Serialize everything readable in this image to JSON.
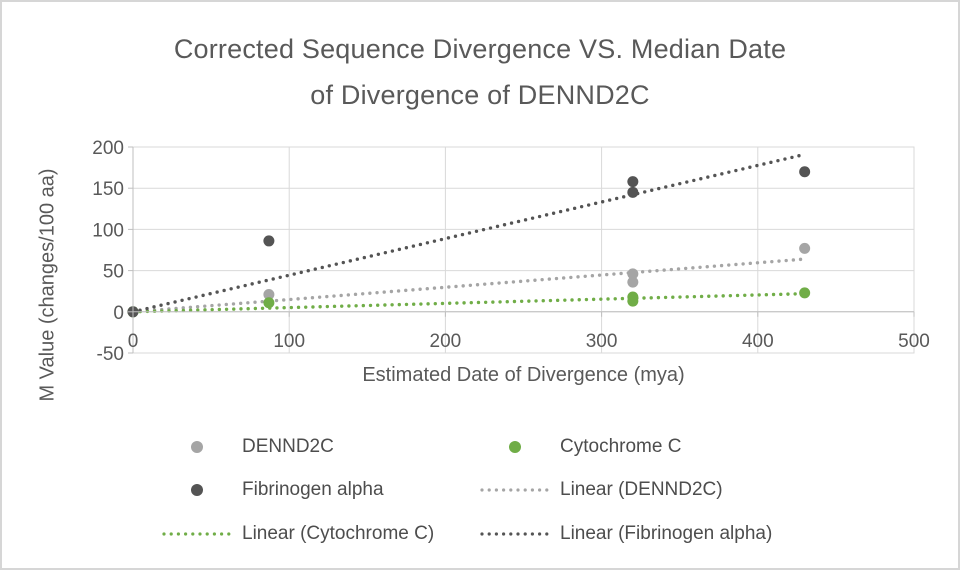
{
  "chart": {
    "title_line1": "Corrected Sequence Divergence VS. Median Date",
    "title_line2": "of Divergence of DENND2C",
    "x_axis_title": "Estimated Date of Divergence (mya)",
    "y_axis_title": "M Value (changes/100 aa)"
  },
  "chart_data": {
    "type": "scatter",
    "title": "Corrected Sequence Divergence VS. Median Date of Divergence of DENND2C",
    "xlabel": "Estimated Date of Divergence (mya)",
    "ylabel": "M Value (changes/100 aa)",
    "xlim": [
      0,
      500
    ],
    "ylim": [
      -50,
      200
    ],
    "x_ticks": [
      0,
      100,
      200,
      300,
      400,
      500
    ],
    "y_ticks": [
      200,
      150,
      100,
      50,
      0,
      -50
    ],
    "grid": true,
    "legend_position": "bottom",
    "series": [
      {
        "name": "DENND2C",
        "color": "#a5a5a5",
        "points": [
          [
            0,
            0
          ],
          [
            87,
            21
          ],
          [
            320,
            46
          ],
          [
            320,
            36
          ],
          [
            430,
            77
          ]
        ]
      },
      {
        "name": "Cytochrome C",
        "color": "#70ad47",
        "points": [
          [
            0,
            0
          ],
          [
            87,
            11
          ],
          [
            320,
            18
          ],
          [
            320,
            13
          ],
          [
            430,
            23
          ]
        ]
      },
      {
        "name": "Fibrinogen alpha",
        "color": "#545454",
        "points": [
          [
            0,
            0
          ],
          [
            87,
            86
          ],
          [
            320,
            158
          ],
          [
            320,
            145
          ],
          [
            430,
            170
          ]
        ]
      }
    ],
    "trendlines": [
      {
        "name": "Linear (DENND2C)",
        "color": "#a5a5a5",
        "x1": 0,
        "y1": 0,
        "x2": 430,
        "y2": 64
      },
      {
        "name": "Linear (Cytochrome C)",
        "color": "#70ad47",
        "x1": 0,
        "y1": 0,
        "x2": 430,
        "y2": 22
      },
      {
        "name": "Linear (Fibrinogen alpha)",
        "color": "#545454",
        "x1": 0,
        "y1": 0,
        "x2": 430,
        "y2": 191
      }
    ]
  },
  "legend": {
    "items": [
      {
        "label": "DENND2C",
        "marker": "dot",
        "color": "#a5a5a5"
      },
      {
        "label": "Cytochrome C",
        "marker": "dot",
        "color": "#70ad47"
      },
      {
        "label": "Fibrinogen alpha",
        "marker": "dot",
        "color": "#545454"
      },
      {
        "label": "Linear (DENND2C)",
        "marker": "dotted-line",
        "color": "#a5a5a5"
      },
      {
        "label": "Linear (Cytochrome C)",
        "marker": "dotted-line",
        "color": "#70ad47"
      },
      {
        "label": "Linear (Fibrinogen alpha)",
        "marker": "dotted-line",
        "color": "#545454"
      }
    ]
  },
  "style": {
    "gridline_color": "#d9d9d9",
    "axis_line_color": "#bfbfbf",
    "tick_label_color": "#595959"
  }
}
